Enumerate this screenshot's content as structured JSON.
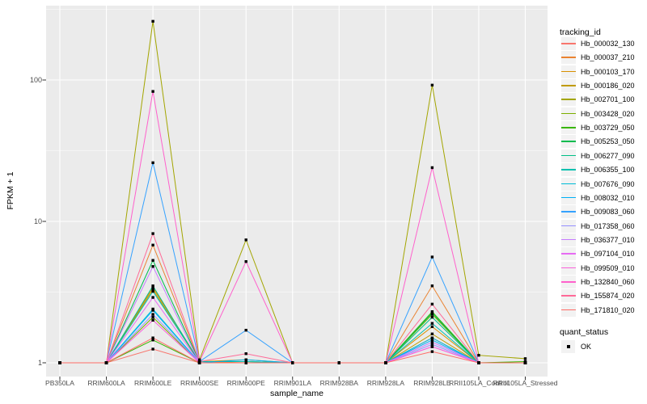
{
  "figure": {
    "background": "#FFFFFF",
    "panel_background": "#EBEBEB",
    "grid_color": "#FFFFFF",
    "axis_text_color": "#4D4D4D",
    "tick_color": "#333333",
    "marker_color": "#000000",
    "legend_key_background": "#F2F2F2"
  },
  "axes": {
    "x_title": "sample_name",
    "y_title": "FPKM + 1",
    "y_tick_labels": [
      "1",
      "10",
      "100"
    ],
    "y_tick_values": [
      1,
      10,
      100
    ],
    "y_minor_values": [
      3.162,
      31.62,
      316.2
    ]
  },
  "legend": {
    "tracking_title": "tracking_id",
    "quant_title": "quant_status",
    "quant_items": [
      {
        "label": "OK",
        "marker": "black-square"
      }
    ]
  },
  "chart_data": {
    "type": "line",
    "title": "",
    "xlabel": "sample_name",
    "ylabel": "FPKM + 1",
    "y_scale": "log10",
    "ylim": [
      0.8,
      336
    ],
    "grid": true,
    "legend_position": "right",
    "point_marker": "black square (quant_status = OK)",
    "categories": [
      "PB350LA",
      "RRIM600LA",
      "RRIM600LE",
      "RRIM600SE",
      "RRIM600PE",
      "RRIM901LA",
      "RRIM928BA",
      "RRIM928LA",
      "RRIM928LE",
      "RRII105LA_Control",
      "RRII105LA_Stressed"
    ],
    "series": [
      {
        "name": "Hb_000032_130",
        "color": "#F8766D",
        "values": [
          1,
          1,
          1.25,
          1,
          1,
          1,
          1,
          1,
          1.5,
          1,
          1
        ]
      },
      {
        "name": "Hb_000037_210",
        "color": "#EA8331",
        "values": [
          1,
          1,
          6.8,
          1.02,
          1,
          1,
          1,
          1,
          3.5,
          1,
          1
        ]
      },
      {
        "name": "Hb_000103_170",
        "color": "#D89000",
        "values": [
          1,
          1,
          3.4,
          1.02,
          1.05,
          1,
          1,
          1,
          1.8,
          1,
          1
        ]
      },
      {
        "name": "Hb_000186_020",
        "color": "#C09B00",
        "values": [
          1,
          1,
          3.3,
          1,
          1,
          1,
          1,
          1,
          1.6,
          1,
          1
        ]
      },
      {
        "name": "Hb_002701_100",
        "color": "#A3A500",
        "values": [
          1,
          1,
          260,
          1.05,
          7.4,
          1,
          1,
          1,
          92,
          1.13,
          1.07
        ]
      },
      {
        "name": "Hb_003428_020",
        "color": "#7CAE00",
        "values": [
          1,
          1,
          2.1,
          1,
          1,
          1,
          1,
          1,
          2.2,
          1,
          1
        ]
      },
      {
        "name": "Hb_003729_050",
        "color": "#39B600",
        "values": [
          1,
          1,
          1.45,
          1,
          1,
          1,
          1,
          1,
          2.3,
          1,
          1.02
        ]
      },
      {
        "name": "Hb_005253_050",
        "color": "#00BB4E",
        "values": [
          1,
          1,
          5.3,
          1.02,
          1.02,
          1,
          1,
          1,
          2.25,
          1,
          1
        ]
      },
      {
        "name": "Hb_006277_090",
        "color": "#00C087",
        "values": [
          1,
          1,
          3.5,
          1,
          1,
          1,
          1,
          1,
          2.1,
          1,
          1
        ]
      },
      {
        "name": "Hb_006355_100",
        "color": "#00C0AF",
        "values": [
          1,
          1,
          3.2,
          1.02,
          1.02,
          1,
          1,
          1,
          1.9,
          1,
          1
        ]
      },
      {
        "name": "Hb_007676_090",
        "color": "#00BCD8",
        "values": [
          1,
          1,
          2.4,
          1,
          1,
          1,
          1,
          1,
          1.5,
          1,
          1
        ]
      },
      {
        "name": "Hb_008032_010",
        "color": "#00B0F6",
        "values": [
          1,
          1,
          2.35,
          1,
          1.05,
          1,
          1,
          1,
          1.45,
          1,
          1
        ]
      },
      {
        "name": "Hb_009083_060",
        "color": "#35A2FF",
        "values": [
          1,
          1,
          26,
          1.02,
          1.7,
          1,
          1,
          1,
          5.6,
          1,
          1
        ]
      },
      {
        "name": "Hb_017358_060",
        "color": "#9590FF",
        "values": [
          1,
          1,
          2.2,
          1,
          1,
          1,
          1,
          1,
          1.35,
          1,
          1
        ]
      },
      {
        "name": "Hb_036377_010",
        "color": "#C77CFF",
        "values": [
          1,
          1,
          4.8,
          1,
          1,
          1,
          1,
          1,
          1.4,
          1,
          1
        ]
      },
      {
        "name": "Hb_097104_010",
        "color": "#E76BF3",
        "values": [
          1,
          1,
          2.9,
          1,
          1,
          1,
          1,
          1,
          1.3,
          1,
          1
        ]
      },
      {
        "name": "Hb_099509_010",
        "color": "#FA62DB",
        "values": [
          1,
          1,
          2.0,
          1,
          1,
          1,
          1,
          1,
          1.3,
          1,
          1
        ]
      },
      {
        "name": "Hb_132840_060",
        "color": "#FF61CC",
        "values": [
          1,
          1,
          83,
          1.02,
          5.2,
          1,
          1,
          1,
          24,
          1,
          1
        ]
      },
      {
        "name": "Hb_155874_020",
        "color": "#FF6A98",
        "values": [
          1,
          1,
          8.2,
          1.02,
          1.16,
          1,
          1,
          1,
          2.6,
          1,
          1
        ]
      },
      {
        "name": "Hb_171810_020",
        "color": "#FF6C67",
        "values": [
          1,
          1,
          1.5,
          1,
          1,
          1,
          1,
          1,
          1.2,
          1,
          1
        ]
      }
    ]
  }
}
